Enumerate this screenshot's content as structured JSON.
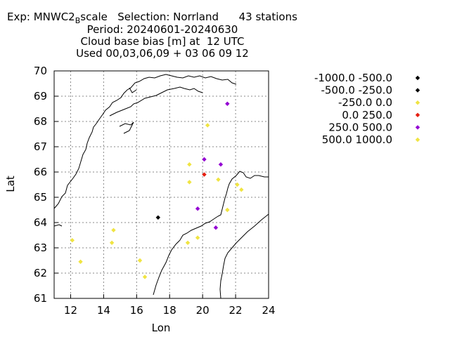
{
  "header": {
    "exp_prefix": "Exp: MNWC2",
    "exp_sub": "B",
    "exp_suffix": "scale   Selection: Norrland      43 stations",
    "line2": "Period: 20240601-20240630",
    "line3": "Cloud base bias [m] at  12 UTC",
    "line4": "Used 00,03,06,09 + 03 06 09 12"
  },
  "chart_data": {
    "type": "scatter",
    "xlabel": "Lon",
    "ylabel": "Lat",
    "xlim": [
      11,
      24
    ],
    "ylim": [
      61,
      70
    ],
    "xticks": [
      "12",
      "14",
      "16",
      "18",
      "20",
      "22",
      "24"
    ],
    "yticks": [
      "61",
      "62",
      "63",
      "64",
      "65",
      "66",
      "67",
      "68",
      "69",
      "70"
    ],
    "grid": true,
    "legend_position": "right",
    "series": [
      {
        "name": "-1000.0 -500.0",
        "color": "#000000",
        "points": []
      },
      {
        "name": "-500.0 -250.0",
        "color": "#000000",
        "points": [
          [
            17.3,
            64.2
          ]
        ]
      },
      {
        "name": "-250.0 0.0",
        "color": "#f0e442",
        "points": [
          [
            12.1,
            63.3
          ],
          [
            12.6,
            62.45
          ],
          [
            14.6,
            63.7
          ],
          [
            14.5,
            63.2
          ],
          [
            16.2,
            62.5
          ],
          [
            16.5,
            61.85
          ],
          [
            19.1,
            63.2
          ],
          [
            19.7,
            63.4
          ],
          [
            19.2,
            66.3
          ],
          [
            19.2,
            65.6
          ],
          [
            20.3,
            67.85
          ],
          [
            20.95,
            65.7
          ],
          [
            21.5,
            64.5
          ],
          [
            22.1,
            65.5
          ],
          [
            22.35,
            65.3
          ]
        ]
      },
      {
        "name": "0.0 250.0",
        "color": "#e51e10",
        "points": [
          [
            20.1,
            65.9
          ]
        ]
      },
      {
        "name": "250.0 500.0",
        "color": "#9400d3",
        "points": [
          [
            21.5,
            68.7
          ],
          [
            20.1,
            66.5
          ],
          [
            21.1,
            66.3
          ],
          [
            19.7,
            64.55
          ],
          [
            20.8,
            63.8
          ]
        ]
      },
      {
        "name": "500.0 1000.0",
        "color": "#f0e442",
        "points": []
      }
    ]
  }
}
